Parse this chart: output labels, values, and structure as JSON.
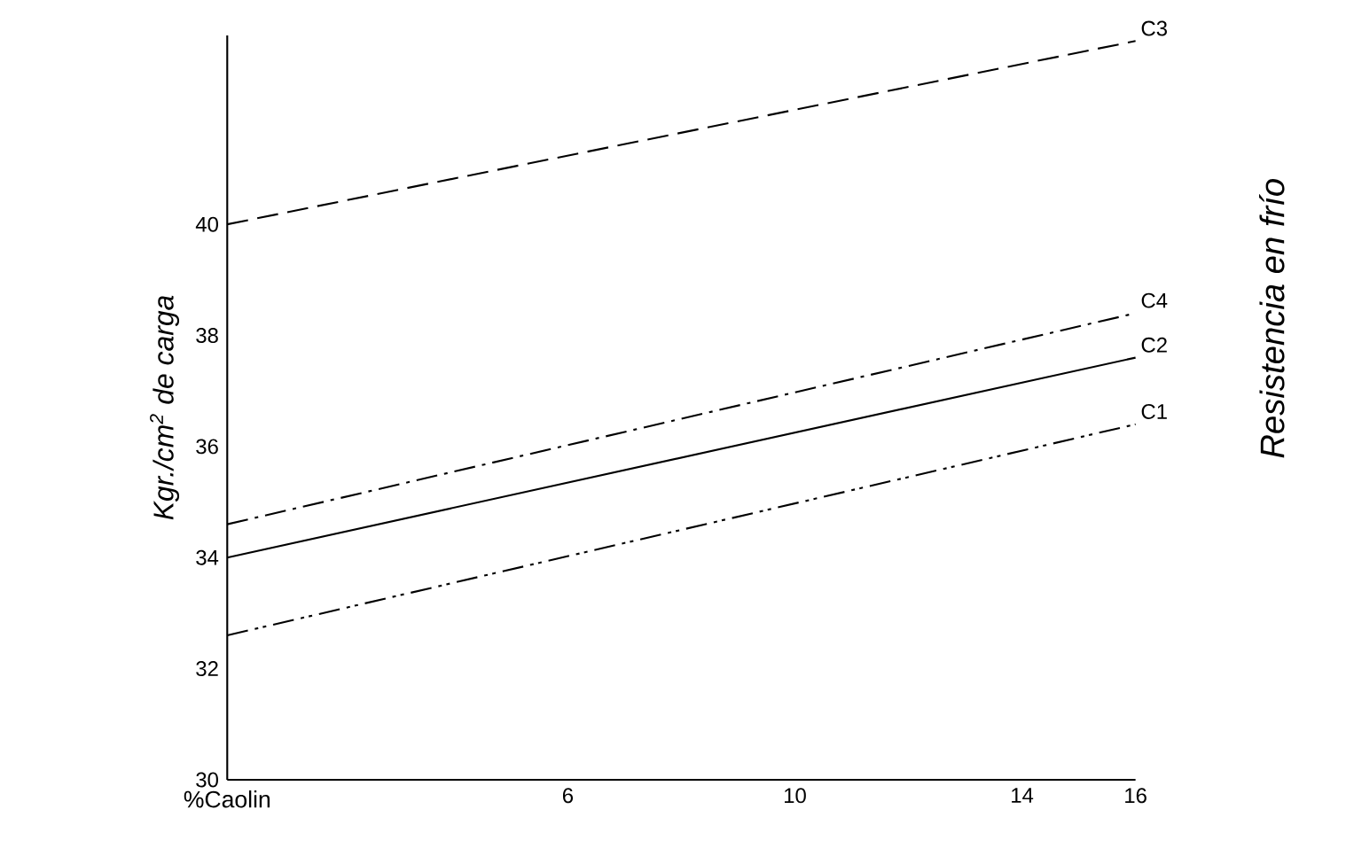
{
  "chart_data": {
    "type": "line",
    "xlabel": "%Caolin",
    "ylabel": "Kgr./cm$^{2}$ de carga",
    "x": [
      0,
      16
    ],
    "xlim": [
      0,
      16
    ],
    "xticks": [
      6,
      10,
      14,
      16
    ],
    "ylim": [
      30,
      43.4
    ],
    "yticks": [
      30,
      32,
      34,
      36,
      38,
      40
    ],
    "series": [
      {
        "name": "C3",
        "color": "#000000",
        "line_style": "dashed",
        "values": [
          40.0,
          43.3
        ]
      },
      {
        "name": "C4",
        "color": "#000000",
        "line_style": "dashdot",
        "values": [
          34.6,
          38.4
        ]
      },
      {
        "name": "C2",
        "color": "#000000",
        "line_style": "solid",
        "values": [
          34.0,
          37.6
        ]
      },
      {
        "name": "C1",
        "color": "#000000",
        "line_style": "dashdotdot",
        "values": [
          32.6,
          36.4
        ]
      }
    ],
    "annotations": [
      "Resistencia en frío"
    ],
    "grid": false,
    "marker": "none"
  }
}
